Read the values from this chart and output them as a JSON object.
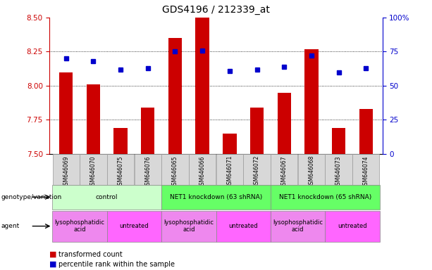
{
  "title": "GDS4196 / 212339_at",
  "samples": [
    "GSM646069",
    "GSM646070",
    "GSM646075",
    "GSM646076",
    "GSM646065",
    "GSM646066",
    "GSM646071",
    "GSM646072",
    "GSM646067",
    "GSM646068",
    "GSM646073",
    "GSM646074"
  ],
  "transformed_counts": [
    8.1,
    8.01,
    7.69,
    7.84,
    8.35,
    8.5,
    7.65,
    7.84,
    7.95,
    8.27,
    7.69,
    7.83
  ],
  "percentile_ranks": [
    70,
    68,
    62,
    63,
    75,
    76,
    61,
    62,
    64,
    72,
    60,
    63
  ],
  "ylim_left": [
    7.5,
    8.5
  ],
  "ylim_right": [
    0,
    100
  ],
  "yticks_left": [
    7.5,
    7.75,
    8.0,
    8.25,
    8.5
  ],
  "yticks_right": [
    0,
    25,
    50,
    75,
    100
  ],
  "ytick_labels_right": [
    "0",
    "25",
    "50",
    "75",
    "100%"
  ],
  "bar_color": "#cc0000",
  "dot_color": "#0000cc",
  "bar_bottom": 7.5,
  "genotype_groups": [
    {
      "label": "control",
      "start": 0,
      "end": 4,
      "color": "#ccffcc"
    },
    {
      "label": "NET1 knockdown (63 shRNA)",
      "start": 4,
      "end": 8,
      "color": "#66ff66"
    },
    {
      "label": "NET1 knockdown (65 shRNA)",
      "start": 8,
      "end": 12,
      "color": "#66ff66"
    }
  ],
  "agent_groups": [
    {
      "label": "lysophosphatidic\nacid",
      "start": 0,
      "end": 2,
      "color": "#ee88ee"
    },
    {
      "label": "untreated",
      "start": 2,
      "end": 4,
      "color": "#ff66ff"
    },
    {
      "label": "lysophosphatidic\nacid",
      "start": 4,
      "end": 6,
      "color": "#ee88ee"
    },
    {
      "label": "untreated",
      "start": 6,
      "end": 8,
      "color": "#ff66ff"
    },
    {
      "label": "lysophosphatidic\nacid",
      "start": 8,
      "end": 10,
      "color": "#ee88ee"
    },
    {
      "label": "untreated",
      "start": 10,
      "end": 12,
      "color": "#ff66ff"
    }
  ],
  "legend_items": [
    {
      "label": "transformed count",
      "color": "#cc0000"
    },
    {
      "label": "percentile rank within the sample",
      "color": "#0000cc"
    }
  ],
  "title_fontsize": 10,
  "tick_fontsize": 7.5,
  "bar_width": 0.5,
  "left_label_color": "#cc0000",
  "right_label_color": "#0000cc",
  "sample_box_color": "#d8d8d8",
  "sample_box_edge": "#999999"
}
